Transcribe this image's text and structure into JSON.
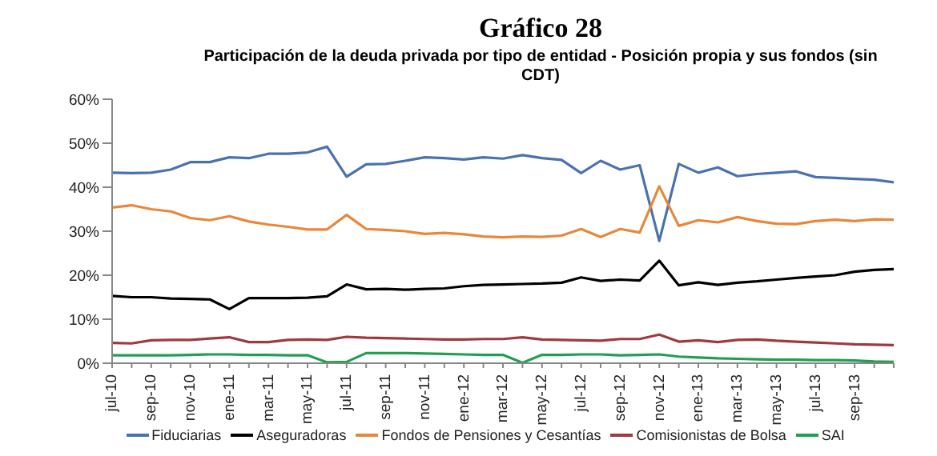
{
  "chart_data": {
    "type": "line",
    "title": "Gráfico 28",
    "subtitle": "Participación de la deuda privada por tipo de entidad - Posición propia y sus fondos (sin CDT)",
    "categories": [
      "jul-10",
      null,
      "sep-10",
      null,
      "nov-10",
      null,
      "ene-11",
      null,
      "mar-11",
      null,
      "may-11",
      null,
      "jul-11",
      null,
      "sep-11",
      null,
      "nov-11",
      null,
      "ene-12",
      null,
      "mar-12",
      null,
      "may-12",
      null,
      "jul-12",
      null,
      "sep-12",
      null,
      "nov-12",
      null,
      "ene-13",
      null,
      "mar-13",
      null,
      "may-13",
      null,
      "jul-13",
      null,
      "sep-13",
      null,
      null
    ],
    "series": [
      {
        "name": "Fiduciarias",
        "color": "#4a72b0",
        "values": [
          43.3,
          43.2,
          43.3,
          44.0,
          45.7,
          45.7,
          46.8,
          46.6,
          47.6,
          47.6,
          47.9,
          49.2,
          42.4,
          45.2,
          45.3,
          46.0,
          46.8,
          46.6,
          46.3,
          46.8,
          46.5,
          47.3,
          46.6,
          46.2,
          43.2,
          46.0,
          44.0,
          45.0,
          27.8,
          45.3,
          43.3,
          44.5,
          42.5,
          43.0,
          43.3,
          43.6,
          42.3,
          42.1,
          41.9,
          41.7,
          41.1
        ]
      },
      {
        "name": "Aseguradoras",
        "color": "#000000",
        "values": [
          15.3,
          15.0,
          15.0,
          14.7,
          14.6,
          14.5,
          12.3,
          14.8,
          14.8,
          14.8,
          14.9,
          15.2,
          17.9,
          16.8,
          16.9,
          16.7,
          16.9,
          17.0,
          17.5,
          17.8,
          17.9,
          18.0,
          18.1,
          18.3,
          19.5,
          18.7,
          19.0,
          18.8,
          23.3,
          17.7,
          18.4,
          17.8,
          18.3,
          18.6,
          19.0,
          19.4,
          19.7,
          20.0,
          20.8,
          21.2,
          21.4
        ]
      },
      {
        "name": "Fondos de Pensiones y Cesantías",
        "color": "#e8873a",
        "values": [
          35.4,
          35.9,
          35.0,
          34.5,
          33.0,
          32.5,
          33.4,
          32.2,
          31.5,
          31.0,
          30.4,
          30.4,
          33.7,
          30.5,
          30.3,
          30.0,
          29.4,
          29.6,
          29.3,
          28.8,
          28.6,
          28.8,
          28.7,
          29.0,
          30.5,
          28.7,
          30.5,
          29.7,
          40.2,
          31.2,
          32.5,
          32.0,
          33.2,
          32.3,
          31.7,
          31.6,
          32.3,
          32.6,
          32.3,
          32.7,
          32.6
        ]
      },
      {
        "name": "Comisionistas de Bolsa",
        "color": "#a0393e",
        "values": [
          4.6,
          4.5,
          5.2,
          5.3,
          5.3,
          5.6,
          5.9,
          4.8,
          4.8,
          5.3,
          5.4,
          5.3,
          6.0,
          5.8,
          5.7,
          5.6,
          5.5,
          5.4,
          5.4,
          5.5,
          5.5,
          5.9,
          5.4,
          5.3,
          5.2,
          5.1,
          5.5,
          5.5,
          6.5,
          4.9,
          5.2,
          4.8,
          5.3,
          5.4,
          5.1,
          4.9,
          4.7,
          4.5,
          4.3,
          4.2,
          4.1
        ]
      },
      {
        "name": "SAI",
        "color": "#1fa050",
        "values": [
          1.8,
          1.8,
          1.8,
          1.8,
          1.9,
          2.0,
          2.0,
          1.9,
          1.9,
          1.8,
          1.8,
          0.2,
          0.3,
          2.3,
          2.3,
          2.3,
          2.2,
          2.1,
          2.0,
          1.9,
          1.9,
          0.1,
          1.9,
          1.9,
          2.0,
          2.0,
          1.8,
          1.9,
          2.0,
          1.5,
          1.3,
          1.1,
          1.0,
          0.9,
          0.8,
          0.8,
          0.7,
          0.7,
          0.6,
          0.4,
          0.3
        ]
      }
    ],
    "ylim": [
      0,
      60
    ],
    "yticks": [
      {
        "value": 0,
        "label": "0%"
      },
      {
        "value": 10,
        "label": "10%"
      },
      {
        "value": 20,
        "label": "20%"
      },
      {
        "value": 30,
        "label": "30%"
      },
      {
        "value": 40,
        "label": "40%"
      },
      {
        "value": 50,
        "label": "50%"
      },
      {
        "value": 60,
        "label": "60%"
      }
    ],
    "grid": false,
    "legend": "bottom",
    "marker": "none",
    "line_style": "solid"
  }
}
